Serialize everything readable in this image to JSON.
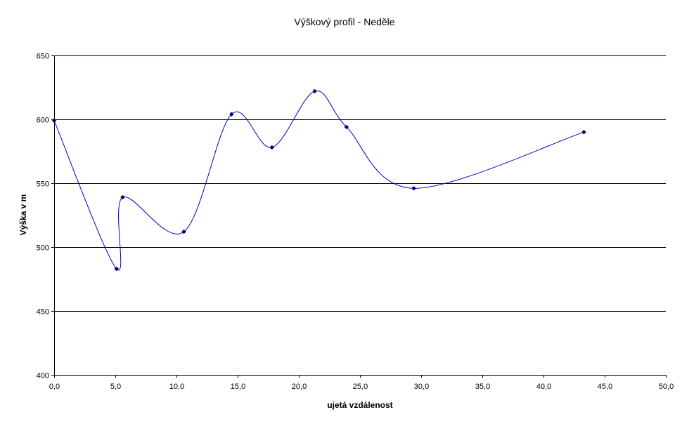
{
  "chart_data": {
    "type": "line",
    "title": "Výškový profil - Neděle",
    "xlabel": "ujetá vzdálenost",
    "ylabel": "Výška v m",
    "xlim": [
      0,
      50
    ],
    "ylim": [
      400,
      650
    ],
    "x_ticks": [
      "0,0",
      "5,0",
      "10,0",
      "15,0",
      "20,0",
      "25,0",
      "30,0",
      "35,0",
      "40,0",
      "45,0",
      "50,0"
    ],
    "y_ticks": [
      "400",
      "450",
      "500",
      "550",
      "600",
      "650"
    ],
    "grid": true,
    "smoothed": true,
    "series": [
      {
        "x": [
          0.0,
          5.1,
          5.6,
          10.6,
          14.5,
          17.8,
          21.3,
          23.9,
          29.4,
          43.3
        ],
        "y": [
          599,
          483,
          539,
          512,
          604,
          578,
          622,
          594,
          546,
          590
        ],
        "color": "#0000cc",
        "marker_color": "#000066"
      }
    ]
  }
}
